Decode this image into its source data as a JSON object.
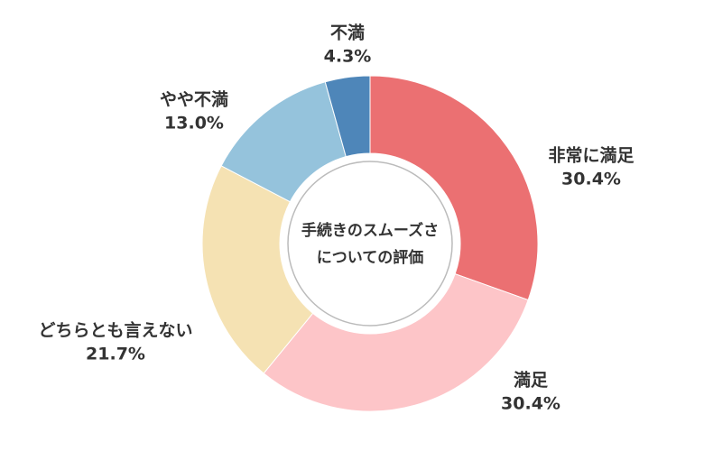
{
  "chart_data": {
    "type": "donut",
    "title_lines": [
      "手続きのスムーズさ",
      "についての評価"
    ],
    "categories": [
      "非常に満足",
      "満足",
      "どちらとも言えない",
      "やや不満",
      "不満"
    ],
    "values": [
      30.4,
      30.4,
      21.7,
      13.0,
      4.3
    ],
    "value_labels": [
      "30.4%",
      "30.4%",
      "21.7%",
      "13.0%",
      "4.3%"
    ],
    "colors": [
      "#eb7072",
      "#fdc5c8",
      "#f5e2b3",
      "#95c3dc",
      "#4e86b9"
    ]
  }
}
